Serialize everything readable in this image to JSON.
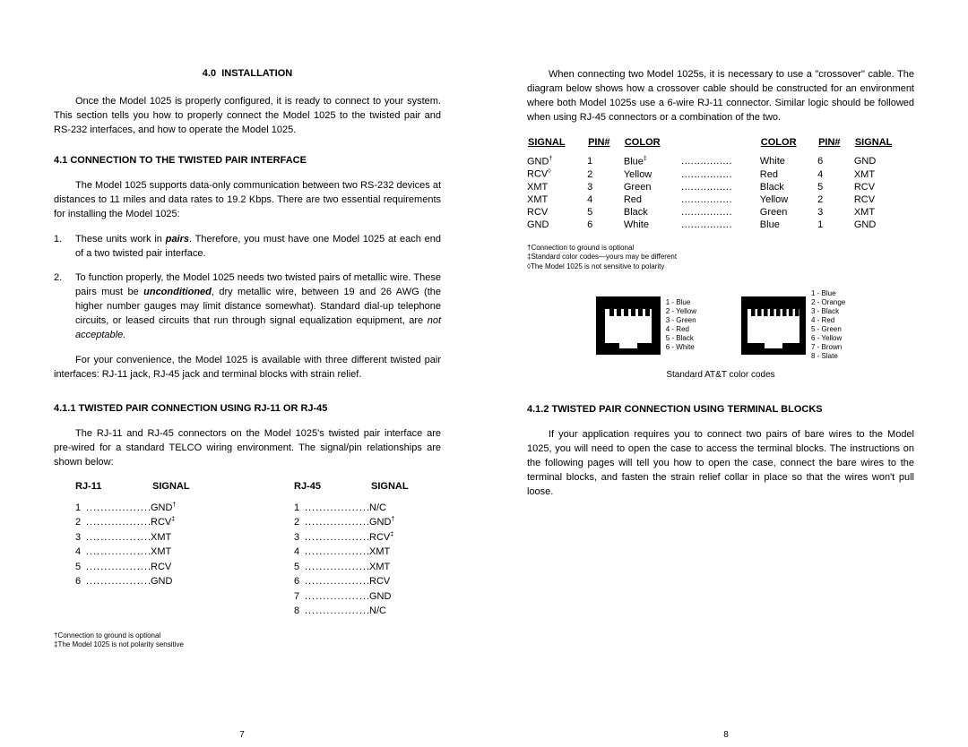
{
  "left": {
    "section_no": "4.0",
    "section_title": "INSTALLATION",
    "intro": "Once the Model 1025 is properly configured, it is ready to connect to your system.  This section tells you how to properly connect the Model 1025 to the twisted pair and RS-232 interfaces, and how to operate the Model 1025.",
    "sub1_title": "4.1  CONNECTION TO THE TWISTED PAIR INTERFACE",
    "sub1_para": "The Model 1025 supports data-only communication between two RS-232 devices at distances to 11 miles and data rates to 19.2 Kbps.  There are two essential requirements for installing the Model 1025:",
    "item1_pre": "These units work in ",
    "item1_em": "pairs",
    "item1_post": ".  Therefore, you must have one Model 1025 at each end of a two twisted pair interface.",
    "item2_pre": "To function properly, the Model 1025 needs two twisted pairs of metallic wire.  These pairs must be ",
    "item2_em": "unconditioned",
    "item2_mid": ", dry metallic wire, between 19 and 26 AWG (the higher number gauges may limit distance somewhat).  Standard dial-up telephone circuits, or leased circuits that run through signal equalization equipment, are ",
    "item2_em2": "not acceptable.",
    "convenience": "For your convenience, the Model 1025 is available with three different twisted pair interfaces:  RJ-11 jack, RJ-45 jack and terminal blocks with strain relief.",
    "sub111_title": "4.1.1  TWISTED PAIR CONNECTION USING RJ-11 OR RJ-45",
    "sub111_para": "The RJ-11 and RJ-45 connectors on the Model 1025's twisted pair interface are pre-wired for a standard TELCO wiring environment.  The signal/pin relationships are shown below:",
    "rj11_label": "RJ-11",
    "rj45_label": "RJ-45",
    "signal_label": "SIGNAL",
    "rj11": [
      {
        "pin": "1",
        "sig": "GND",
        "sup": "†"
      },
      {
        "pin": "2",
        "sig": "RCV",
        "sup": "‡"
      },
      {
        "pin": "3",
        "sig": "XMT"
      },
      {
        "pin": "4",
        "sig": "XMT"
      },
      {
        "pin": "5",
        "sig": "RCV"
      },
      {
        "pin": "6",
        "sig": "GND"
      }
    ],
    "rj45": [
      {
        "pin": "1",
        "sig": "N/C"
      },
      {
        "pin": "2",
        "sig": "GND",
        "sup": "†"
      },
      {
        "pin": "3",
        "sig": "RCV",
        "sup": "‡"
      },
      {
        "pin": "4",
        "sig": "XMT"
      },
      {
        "pin": "5",
        "sig": "XMT"
      },
      {
        "pin": "6",
        "sig": "RCV"
      },
      {
        "pin": "7",
        "sig": "GND"
      },
      {
        "pin": "8",
        "sig": "N/C"
      }
    ],
    "footnote1": "†Connection to ground is optional",
    "footnote2": "‡The Model 1025 is not polarity sensitive",
    "page_num": "7"
  },
  "right": {
    "intro": "When connecting two Model 1025s, it is necessary to use a \"crossover\" cable.  The diagram below shows how a crossover cable should be constructed for an environment where both Model 1025s use a 6-wire RJ-11 connector.  Similar logic should be followed when using RJ-45 connectors or a combination of the two.",
    "hdr_signal": "SIGNAL",
    "hdr_pin": "PIN#",
    "hdr_color": "COLOR",
    "crossover": [
      {
        "sigL": "GND",
        "supL": "†",
        "pinL": "1",
        "colL": "Blue",
        "colLsup": "‡",
        "colR": "White",
        "pinR": "6",
        "sigR": "GND"
      },
      {
        "sigL": "RCV",
        "supL": "◊",
        "pinL": "2",
        "colL": "Yellow",
        "colR": "Red",
        "pinR": "4",
        "sigR": "XMT"
      },
      {
        "sigL": "XMT",
        "pinL": "3",
        "colL": "Green",
        "colR": "Black",
        "pinR": "5",
        "sigR": "RCV"
      },
      {
        "sigL": "XMT",
        "pinL": "4",
        "colL": "Red",
        "colR": "Yellow",
        "pinR": "2",
        "sigR": "RCV"
      },
      {
        "sigL": "RCV",
        "pinL": "5",
        "colL": "Black",
        "colR": "Green",
        "pinR": "3",
        "sigR": "XMT"
      },
      {
        "sigL": "GND",
        "pinL": "6",
        "colL": "White",
        "colR": "Blue",
        "pinR": "1",
        "sigR": "GND"
      }
    ],
    "footnote1": "†Connection to ground is optional",
    "footnote2": "‡Standard color codes—yours may be different",
    "footnote3": "◊The Model 1025 is not sensitive to polarity",
    "rj11_labels": [
      "1 - Blue",
      "2 - Yellow",
      "3 - Green",
      "4 - Red",
      "5 - Black",
      "6 - White"
    ],
    "rj45_labels": [
      "1 - Blue",
      "2 - Orange",
      "3 - Black",
      "4 - Red",
      "5 - Green",
      "6 - Yellow",
      "7 - Brown",
      "8 - Slate"
    ],
    "diagram_caption": "Standard AT&T color codes",
    "sub112_title": "4.1.2  TWISTED PAIR CONNECTION USING TERMINAL BLOCKS",
    "sub112_para": "If your application requires you to connect two pairs of bare wires to the Model 1025, you will need to open the case to access the terminal blocks. The instructions on the following pages will tell you how to open the case, connect the bare wires to the terminal blocks, and fasten the strain relief collar in place so that the wires won't pull loose.",
    "page_num": "8"
  },
  "style": {
    "connector_fill": "#000000",
    "pin_fill": "#ffffff"
  }
}
